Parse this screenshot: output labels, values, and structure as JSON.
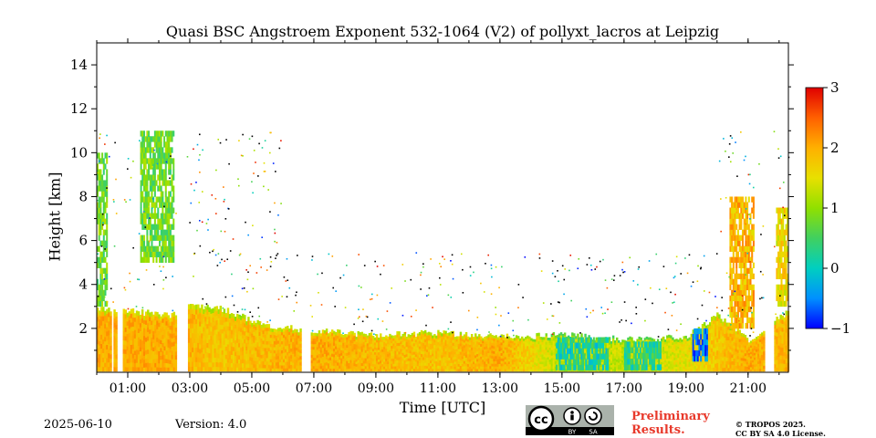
{
  "chart_data": {
    "type": "heatmap",
    "title": "Quasi BSC Angstroem Exponent 532-1064 (V2) of pollyxt_lacros at Leipzig",
    "xlabel": "Time [UTC]",
    "ylabel": "Height [km]",
    "x_range_hours": [
      0,
      22.3
    ],
    "ylim": [
      0,
      15
    ],
    "x_ticks": [
      {
        "value": 1,
        "label": "01:00"
      },
      {
        "value": 3,
        "label": "03:00"
      },
      {
        "value": 5,
        "label": "05:00"
      },
      {
        "value": 7,
        "label": "07:00"
      },
      {
        "value": 9,
        "label": "09:00"
      },
      {
        "value": 11,
        "label": "11:00"
      },
      {
        "value": 13,
        "label": "13:00"
      },
      {
        "value": 15,
        "label": "15:00"
      },
      {
        "value": 17,
        "label": "17:00"
      },
      {
        "value": 19,
        "label": "19:00"
      },
      {
        "value": 21,
        "label": "21:00"
      }
    ],
    "y_ticks": [
      2,
      4,
      6,
      8,
      10,
      12,
      14
    ],
    "colorbar": {
      "range": [
        -1,
        3
      ],
      "ticks": [
        -1,
        0,
        1,
        2,
        3
      ],
      "colors": [
        "#0000ff",
        "#0090ff",
        "#00cfc0",
        "#40d060",
        "#90e000",
        "#e8e000",
        "#ffb000",
        "#ff6000",
        "#e00000"
      ]
    },
    "boundary_layer": [
      {
        "t": 0.0,
        "top": 2.9,
        "value": 2.0
      },
      {
        "t": 2.5,
        "top": 2.6,
        "value": 2.0
      },
      {
        "t": 3.0,
        "top": 3.0,
        "value": 1.9
      },
      {
        "t": 4.0,
        "top": 2.9,
        "value": 1.8
      },
      {
        "t": 5.5,
        "top": 2.1,
        "value": 1.9
      },
      {
        "t": 7.0,
        "top": 1.9,
        "value": 2.0
      },
      {
        "t": 9.0,
        "top": 1.7,
        "value": 1.9
      },
      {
        "t": 11.0,
        "top": 1.8,
        "value": 1.8
      },
      {
        "t": 13.0,
        "top": 1.6,
        "value": 2.0
      },
      {
        "t": 15.0,
        "top": 1.7,
        "value": 1.2
      },
      {
        "t": 17.0,
        "top": 1.5,
        "value": 1.3
      },
      {
        "t": 19.0,
        "top": 1.6,
        "value": 1.5
      },
      {
        "t": 20.0,
        "top": 2.6,
        "value": 1.8
      },
      {
        "t": 21.0,
        "top": 1.5,
        "value": 2.0
      },
      {
        "t": 22.3,
        "top": 2.8,
        "value": 1.9
      }
    ],
    "data_gaps_hours": [
      [
        0.45,
        0.5
      ],
      [
        0.62,
        0.8
      ],
      [
        2.55,
        2.9
      ],
      [
        6.55,
        6.85
      ],
      [
        21.5,
        21.8
      ]
    ],
    "notable_features": [
      {
        "t_start": 0.0,
        "t_end": 0.35,
        "h_start": 3.0,
        "h_end": 10.0,
        "value": 0.8
      },
      {
        "t_start": 1.4,
        "t_end": 2.5,
        "h_start": 5.0,
        "h_end": 11.0,
        "value": 0.8
      },
      {
        "t_start": 14.8,
        "t_end": 16.5,
        "h_start": 0.1,
        "h_end": 1.6,
        "value": 0.2
      },
      {
        "t_start": 17.0,
        "t_end": 18.2,
        "h_start": 0.1,
        "h_end": 1.4,
        "value": 0.3
      },
      {
        "t_start": 19.2,
        "t_end": 19.7,
        "h_start": 0.5,
        "h_end": 2.0,
        "value": -0.5
      },
      {
        "t_start": 20.4,
        "t_end": 21.2,
        "h_start": 2.0,
        "h_end": 8.0,
        "value": 1.9
      },
      {
        "t_start": 21.9,
        "t_end": 22.3,
        "h_start": 3.0,
        "h_end": 7.5,
        "value": 1.6
      }
    ],
    "grid": false,
    "legend": "colorbar-right"
  },
  "footer": {
    "date": "2025-06-10",
    "version": "Version: 4.0",
    "prelim_line1": "Preliminary",
    "prelim_line2": "Results.",
    "copyright_line1": "© TROPOS 2025.",
    "copyright_line2": "CC BY SA 4.0 License.",
    "cc_by": "BY",
    "cc_sa": "SA"
  }
}
